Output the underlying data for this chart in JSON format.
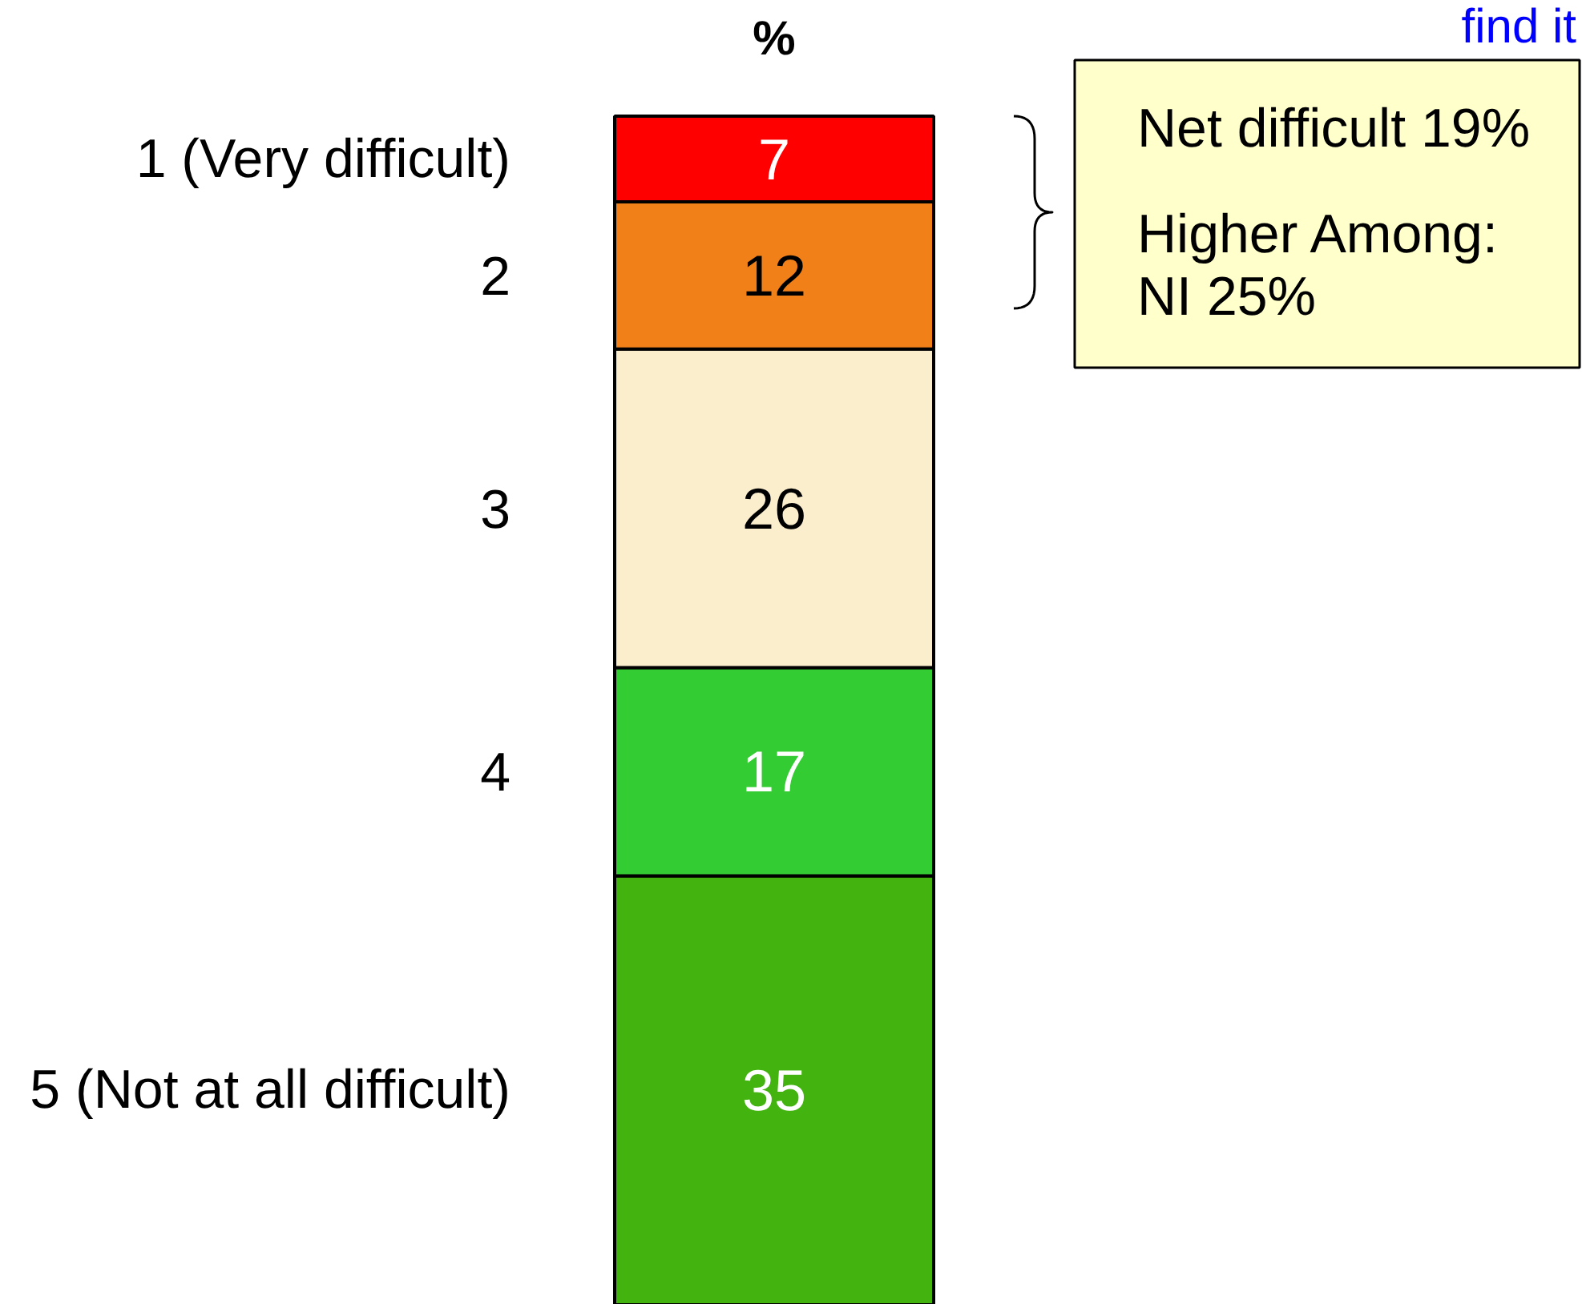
{
  "chart_data": {
    "type": "bar",
    "title": "%",
    "categories": [
      null
    ],
    "stacked": true,
    "data_labels": true,
    "series": [
      {
        "name": "5 (Not at all difficult)",
        "color": "#43b30f",
        "values": [
          35
        ]
      },
      {
        "name": "4",
        "color": "#33cc33",
        "values": [
          17
        ]
      },
      {
        "name": "3",
        "color": "#fbeecd",
        "values": [
          26
        ]
      },
      {
        "name": "2",
        "color": "#f28018",
        "values": [
          12
        ]
      },
      {
        "name": "1 (Very difficult)",
        "color": "#ff0000",
        "values": [
          7
        ]
      }
    ],
    "annotations": [
      "Net difficult 19%",
      "Higher Among:\nNI 25%",
      "find it"
    ]
  }
}
